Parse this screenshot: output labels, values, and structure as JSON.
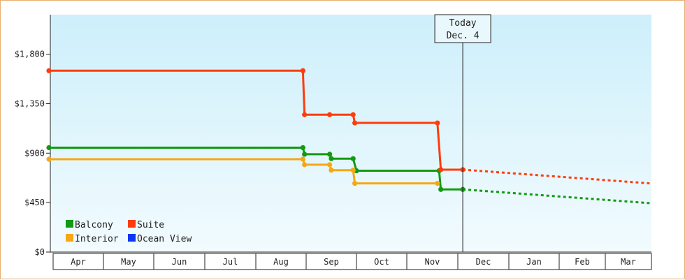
{
  "chart_data": {
    "type": "line",
    "title": "",
    "xlabel": "",
    "ylabel": "",
    "ylim": [
      0,
      2160
    ],
    "yticks": [
      0,
      450,
      900,
      1350,
      1800
    ],
    "ytick_labels": [
      "$0",
      "$450",
      "$900",
      "$1,350",
      "$1,800"
    ],
    "months": [
      "Apr",
      "May",
      "Jun",
      "Jul",
      "Aug",
      "Sep",
      "Oct",
      "Nov",
      "Dec",
      "Jan",
      "Feb",
      "Mar"
    ],
    "today": {
      "line1": "Today",
      "line2": "Dec. 4",
      "date": "Dec 4"
    },
    "grid": false,
    "legend_position": "bottom-left",
    "series": [
      {
        "name": "Balcony",
        "color": "#129a12",
        "points": [
          [
            "Apr 1",
            950
          ],
          [
            "Aug 30",
            950
          ],
          [
            "Aug 31",
            890
          ],
          [
            "Sep 15",
            890
          ],
          [
            "Sep 16",
            850
          ],
          [
            "Sep 29",
            850
          ],
          [
            "Oct 1",
            740
          ],
          [
            "Nov 20",
            740
          ],
          [
            "Nov 21",
            570
          ],
          [
            "Dec 4",
            570
          ]
        ],
        "forecast": [
          [
            "Dec 4",
            570
          ],
          [
            "Mar 31",
            445
          ]
        ]
      },
      {
        "name": "Suite",
        "color": "#ff3c0c",
        "points": [
          [
            "Apr 1",
            1650
          ],
          [
            "Aug 30",
            1650
          ],
          [
            "Aug 31",
            1250
          ],
          [
            "Sep 15",
            1250
          ],
          [
            "Sep 29",
            1250
          ],
          [
            "Sep 30",
            1175
          ],
          [
            "Nov 19",
            1175
          ],
          [
            "Nov 21",
            750
          ],
          [
            "Dec 4",
            750
          ]
        ],
        "forecast": [
          [
            "Dec 4",
            750
          ],
          [
            "Mar 31",
            625
          ]
        ]
      },
      {
        "name": "Interior",
        "color": "#f5a814",
        "points": [
          [
            "Apr 1",
            845
          ],
          [
            "Aug 30",
            845
          ],
          [
            "Aug 31",
            795
          ],
          [
            "Sep 15",
            795
          ],
          [
            "Sep 16",
            745
          ],
          [
            "Sep 29",
            745
          ],
          [
            "Sep 30",
            625
          ],
          [
            "Nov 19",
            625
          ]
        ]
      },
      {
        "name": "Ocean View",
        "color": "#0a36f5",
        "points": []
      }
    ]
  }
}
